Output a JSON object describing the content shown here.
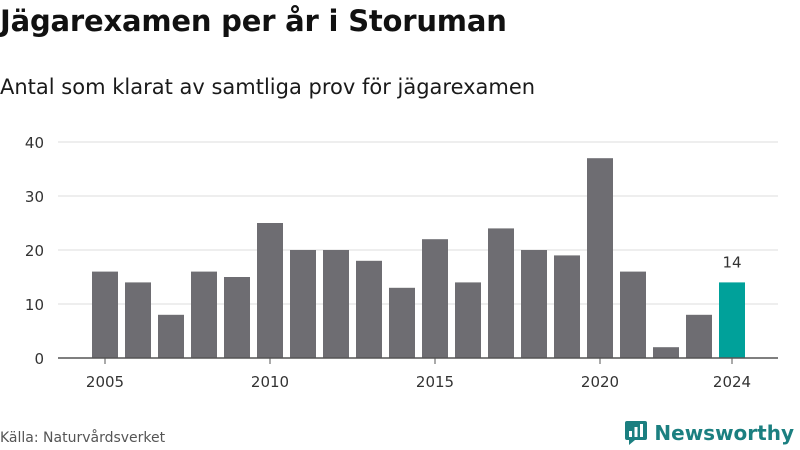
{
  "header": {
    "title": "Jägarexamen per år i Storuman",
    "subtitle": "Antal som klarat av samtliga prov för jägarexamen"
  },
  "footer": {
    "source": "Källa: Naturvårdsverket",
    "brand": "Newsworthy",
    "brand_icon": "bar-chart-speech-bubble-icon"
  },
  "colors": {
    "bar": "#6e6d72",
    "highlight": "#00a19a",
    "grid": "#dddddd",
    "axis": "#555555",
    "text": "#333333",
    "brand": "#1b7f80"
  },
  "chart_data": {
    "type": "bar",
    "title": "Jägarexamen per år i Storuman",
    "subtitle": "Antal som klarat av samtliga prov för jägarexamen",
    "xlabel": "",
    "ylabel": "",
    "categories": [
      "2005",
      "2006",
      "2007",
      "2008",
      "2009",
      "2010",
      "2011",
      "2012",
      "2013",
      "2014",
      "2015",
      "2016",
      "2017",
      "2018",
      "2019",
      "2020",
      "2021",
      "2022",
      "2023",
      "2024"
    ],
    "values": [
      16,
      14,
      8,
      16,
      15,
      25,
      20,
      20,
      18,
      13,
      22,
      14,
      24,
      20,
      19,
      37,
      16,
      2,
      8,
      14
    ],
    "ylim": [
      0,
      40
    ],
    "yticks": [
      0,
      10,
      20,
      30,
      40
    ],
    "xticks": [
      "2005",
      "2010",
      "2015",
      "2020",
      "2024"
    ],
    "highlight_index": 19,
    "data_labels": [
      {
        "category": "2024",
        "text": "14"
      }
    ],
    "grid": true,
    "legend": "none"
  }
}
